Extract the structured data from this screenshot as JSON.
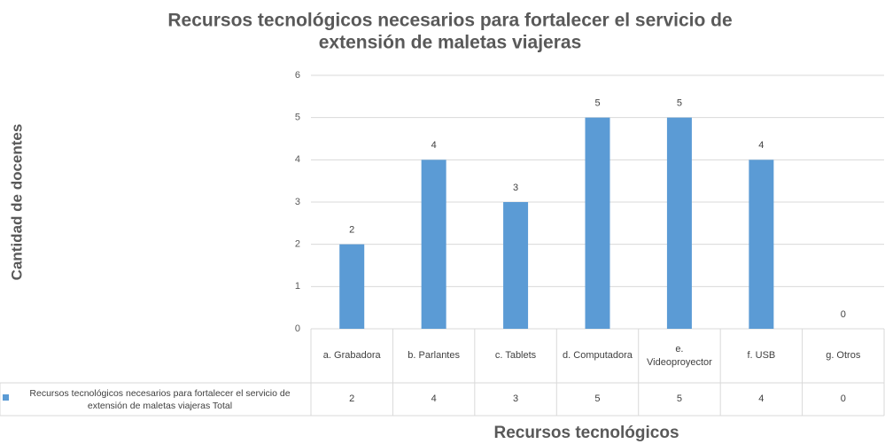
{
  "chart_data": {
    "type": "bar",
    "title": "Recursos tecnológicos necesarios para fortalecer el servicio de",
    "title_line2": "extensión de maletas viajeras",
    "y_label": "Cantidad de docentes",
    "x_label": "Recursos tecnológicos",
    "categories": [
      "a. Grabadora",
      "b. Parlantes",
      "c. Tablets",
      "d. Computadora",
      "e. Videoproyector",
      "f. USB",
      "g. Otros"
    ],
    "series": [
      {
        "name": "Recursos tecnológicos necesarios para fortalecer el servicio de extensión de maletas viajeras Total",
        "color": "#5b9bd5",
        "values": [
          2,
          4,
          3,
          5,
          5,
          4,
          0
        ]
      }
    ],
    "ylim": [
      0,
      6
    ],
    "yticks": [
      0,
      1,
      2,
      3,
      4,
      5,
      6
    ],
    "grid": true
  }
}
